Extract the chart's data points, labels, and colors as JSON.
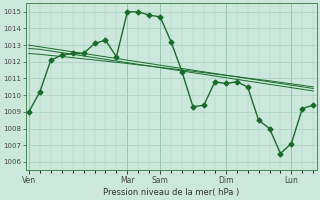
{
  "title": "Pression niveau de la mer( hPa )",
  "background_color": "#cce8dc",
  "grid_color": "#a8cfc0",
  "line_color": "#1a6b2a",
  "ylim": [
    1005.5,
    1015.5
  ],
  "yticks": [
    1006,
    1007,
    1008,
    1009,
    1010,
    1011,
    1012,
    1013,
    1014,
    1015
  ],
  "x_day_labels": [
    "Ven",
    "Mar",
    "Sam",
    "Dim",
    "Lun"
  ],
  "x_day_positions": [
    0,
    9,
    12,
    18,
    24
  ],
  "total_points": 27,
  "series_main": [
    1009.0,
    1010.2,
    1012.1,
    1012.4,
    1012.5,
    1012.5,
    1013.1,
    1013.3,
    1012.3,
    1015.0,
    1015.0,
    1014.8,
    1014.7,
    1013.2,
    1011.4,
    1009.3,
    1009.4,
    1010.8,
    1010.7,
    1010.8,
    1010.5,
    1008.5,
    1008.0,
    1006.5,
    1007.1,
    1009.2,
    1009.4
  ],
  "series_trend1": [
    1012.8,
    1012.75,
    1012.65,
    1012.55,
    1012.45,
    1012.35,
    1012.25,
    1012.15,
    1012.05,
    1011.95,
    1011.85,
    1011.75,
    1011.65,
    1011.55,
    1011.45,
    1011.35,
    1011.25,
    1011.15,
    1011.05,
    1010.95,
    1010.85,
    1010.75,
    1010.65,
    1010.55,
    1010.45,
    1010.35,
    1010.25
  ],
  "series_trend2": [
    1012.5,
    1012.45,
    1012.38,
    1012.32,
    1012.25,
    1012.18,
    1012.11,
    1012.04,
    1011.97,
    1011.9,
    1011.82,
    1011.75,
    1011.67,
    1011.59,
    1011.51,
    1011.43,
    1011.35,
    1011.27,
    1011.19,
    1011.11,
    1011.02,
    1010.94,
    1010.86,
    1010.77,
    1010.68,
    1010.59,
    1010.5
  ],
  "series_trend3": [
    1013.0,
    1012.9,
    1012.8,
    1012.7,
    1012.6,
    1012.5,
    1012.4,
    1012.3,
    1012.2,
    1012.1,
    1012.0,
    1011.9,
    1011.8,
    1011.7,
    1011.6,
    1011.5,
    1011.4,
    1011.3,
    1011.2,
    1011.1,
    1011.0,
    1010.9,
    1010.8,
    1010.7,
    1010.6,
    1010.5,
    1010.4
  ],
  "marker": "D",
  "markersize": 2.5,
  "linewidth": 1.0,
  "thin_linewidth": 0.7
}
